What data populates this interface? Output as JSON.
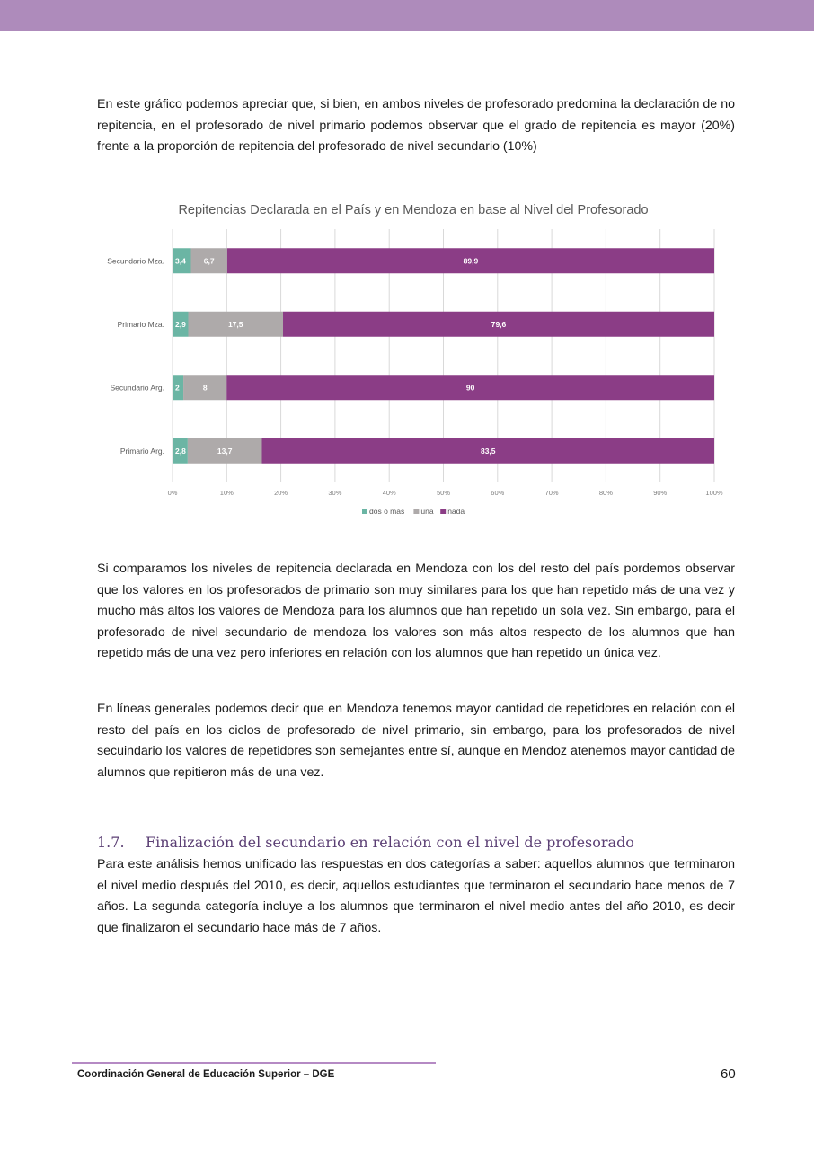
{
  "paragraphs": {
    "p1": "En este gráfico podemos apreciar que, si bien, en ambos niveles de profesorado predomina la declaración de no repitencia, en el profesorado de nivel primario podemos observar que el grado de repitencia es mayor (20%) frente a la proporción de repitencia del profesorado de nivel secundario (10%)",
    "p2": "Si comparamos los niveles de repitencia declarada en Mendoza con los del resto del país pordemos observar que los valores en los profesorados de primario son muy similares para los que han repetido más de una vez y mucho más altos los valores de Mendoza para los alumnos que han repetido un sola vez. Sin embargo, para el profesorado de nivel secundario de mendoza los valores son más altos respecto de los alumnos que han repetido más de una vez pero inferiores en relación con los alumnos que han repetido un única vez.",
    "p3": "En líneas generales podemos decir que en Mendoza tenemos mayor cantidad de repetidores en relación con el resto del país en los ciclos de profesorado de nivel primario, sin embargo, para los profesorados de nivel secuindario los valores de repetidores son semejantes entre sí, aunque en Mendoz atenemos mayor cantidad de alumnos que repitieron más de una vez.",
    "p4": "Para este análisis hemos unificado las respuestas en dos categorías a saber: aquellos alumnos que terminaron el nivel medio después del 2010, es decir, aquellos estudiantes que terminaron el secundario hace menos de 7 años. La segunda categoría incluye a los alumnos que terminaron el nivel medio antes del año 2010, es decir que finalizaron el secundario hace más de 7 años."
  },
  "section": {
    "number": "1.7.",
    "title": "Finalización del secundario en relación con el nivel de profesorado"
  },
  "footer": {
    "text": "Coordinación General de Educación Superior – DGE",
    "page": "60"
  },
  "colors": {
    "band": "#ae8bbb",
    "dos": "#6bb5a4",
    "una": "#aeaaaa",
    "nada": "#8b3d86"
  },
  "chart_data": {
    "type": "bar",
    "orientation": "horizontal-stacked-100",
    "title": "Repitencias Declarada en el País y en Mendoza en base al Nivel del Profesorado",
    "categories": [
      "Secundario Mza.",
      "Primario Mza.",
      "Secundario Arg.",
      "Primario Arg."
    ],
    "series": [
      {
        "name": "dos o más",
        "values": [
          3.4,
          2.9,
          2,
          2.8
        ],
        "labels": [
          "3,4",
          "2,9",
          "2",
          "2,8"
        ]
      },
      {
        "name": "una",
        "values": [
          6.7,
          17.5,
          8,
          13.7
        ],
        "labels": [
          "6,7",
          "17,5",
          "8",
          "13,7"
        ]
      },
      {
        "name": "nada",
        "values": [
          89.9,
          79.6,
          90,
          83.5
        ],
        "labels": [
          "89,9",
          "79,6",
          "90",
          "83,5"
        ]
      }
    ],
    "xticks": [
      "0%",
      "10%",
      "20%",
      "30%",
      "40%",
      "50%",
      "60%",
      "70%",
      "80%",
      "90%",
      "100%"
    ],
    "xlim": [
      0,
      100
    ],
    "grid": true,
    "legend": "bottom"
  }
}
